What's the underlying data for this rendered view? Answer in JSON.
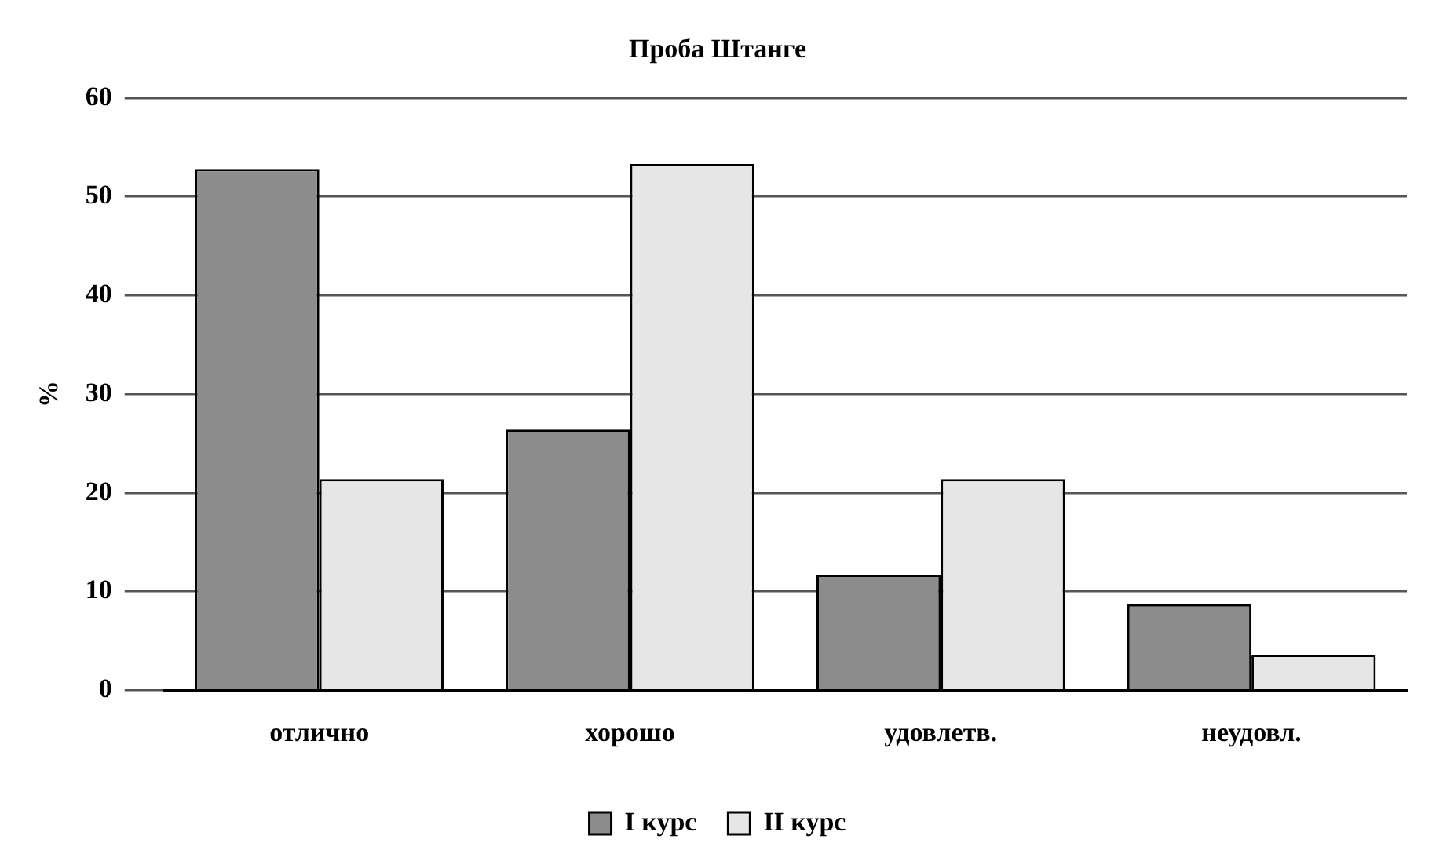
{
  "chart_data": {
    "type": "bar",
    "title": "Проба Штанге",
    "ylabel": "%",
    "categories": [
      "отлично",
      "хорошо",
      "удовлетв.",
      "неудовл."
    ],
    "series": [
      {
        "name": "I курс",
        "color": "#8c8c8c",
        "values": [
          52.8,
          26.4,
          11.7,
          8.7
        ]
      },
      {
        "name": "II курс",
        "color": "#e6e6e6",
        "values": [
          21.4,
          53.3,
          21.4,
          3.6
        ]
      }
    ],
    "ylim": [
      0,
      60
    ],
    "yticks": [
      0,
      10,
      20,
      30,
      40,
      50,
      60
    ],
    "grid": "y",
    "legend": "bottom"
  }
}
